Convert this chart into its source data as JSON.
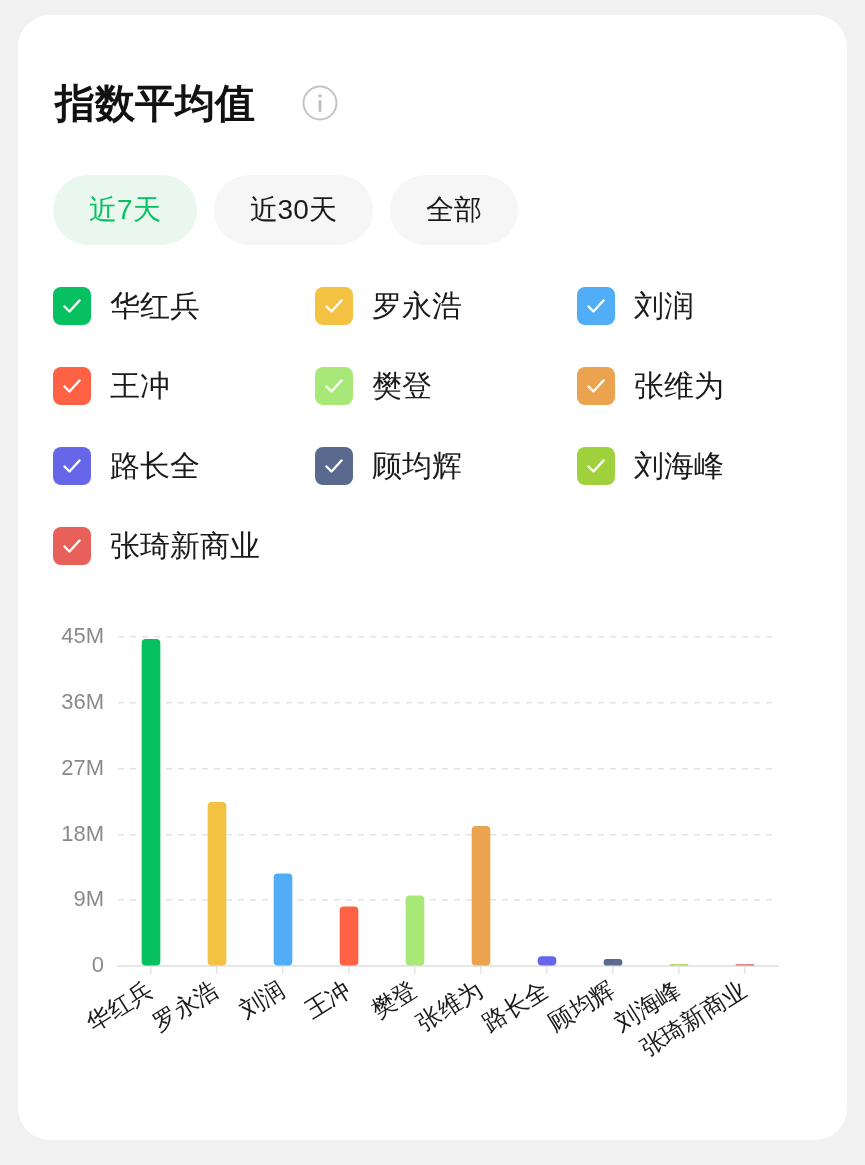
{
  "chart_data": {
    "type": "bar",
    "title": "指数平均值",
    "annotations": [
      "近7天",
      "近30天",
      "全部"
    ],
    "categories": [
      "华红兵",
      "罗永浩",
      "刘润",
      "王冲",
      "樊登",
      "张维为",
      "路长全",
      "顾均辉",
      "刘海峰",
      "张琦新商业"
    ],
    "series": [
      {
        "name": "华红兵",
        "color": "#07c160",
        "values": [
          44.7,
          null,
          null,
          null,
          null,
          null,
          null,
          null,
          null,
          null
        ]
      },
      {
        "name": "罗永浩",
        "color": "#f4c242",
        "values": [
          null,
          22.4,
          null,
          null,
          null,
          null,
          null,
          null,
          null,
          null
        ]
      },
      {
        "name": "刘润",
        "color": "#52adf7",
        "values": [
          null,
          null,
          12.6,
          null,
          null,
          null,
          null,
          null,
          null,
          null
        ]
      },
      {
        "name": "王冲",
        "color": "#ff6145",
        "values": [
          null,
          null,
          null,
          8.1,
          null,
          null,
          null,
          null,
          null,
          null
        ]
      },
      {
        "name": "樊登",
        "color": "#a8e878",
        "values": [
          null,
          null,
          null,
          null,
          9.6,
          null,
          null,
          null,
          null,
          null
        ]
      },
      {
        "name": "张维为",
        "color": "#eba34f",
        "values": [
          null,
          null,
          null,
          null,
          null,
          19.1,
          null,
          null,
          null,
          null
        ]
      },
      {
        "name": "路长全",
        "color": "#6667e8",
        "values": [
          null,
          null,
          null,
          null,
          null,
          null,
          1.3,
          null,
          null,
          null
        ]
      },
      {
        "name": "顾均辉",
        "color": "#596a8e",
        "values": [
          null,
          null,
          null,
          null,
          null,
          null,
          null,
          0.9,
          null,
          null
        ]
      },
      {
        "name": "刘海峰",
        "color": "#9fd13c",
        "values": [
          null,
          null,
          null,
          null,
          null,
          null,
          null,
          null,
          0.2,
          null
        ]
      },
      {
        "name": "张琦新商业",
        "color": "#e8605a",
        "values": [
          null,
          null,
          null,
          null,
          null,
          null,
          null,
          null,
          null,
          0.2
        ]
      }
    ],
    "ylim": [
      0,
      45
    ],
    "yticks": [
      0,
      {
        "value": 9,
        "label": "9M"
      },
      {
        "value": 18,
        "label": "18M"
      },
      {
        "value": 27,
        "label": "27M"
      },
      {
        "value": 36,
        "label": "36M"
      },
      {
        "value": 45,
        "label": "45M"
      }
    ],
    "grid": "y",
    "legend": "top"
  }
}
